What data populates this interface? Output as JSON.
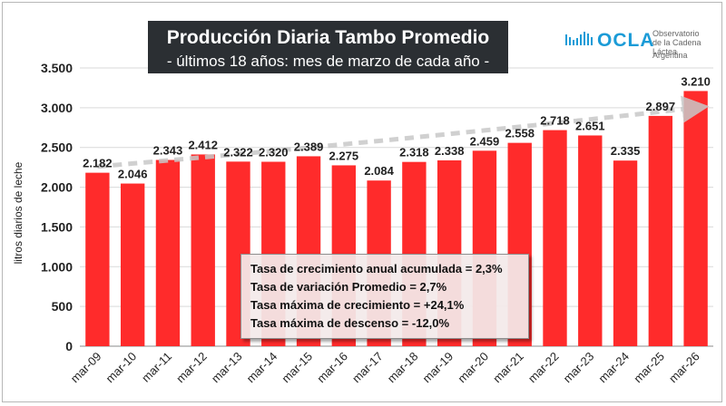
{
  "header": {
    "title": "Producción Diaria Tambo Promedio",
    "subtitle": "- últimos 18 años: mes de marzo de cada año -"
  },
  "logo": {
    "brand": "OCLA",
    "org_line1": "Observatorio",
    "org_line2": "de la Cadena Láctea",
    "country": "Argentina",
    "icon": "wave-bars-icon"
  },
  "stats": {
    "line1": "Tasa de crecimiento anual acumulada = 2,3%",
    "line2": "Tasa de variación  Promedio = 2,7%",
    "line3": "Tasa máxima de crecimiento = +24,1%",
    "line4": "Tasa máxima de descenso = -12,0%"
  },
  "colors": {
    "bar": "#ff2b2b",
    "trend": "#c8c8c8",
    "title_bg": "#2b2f33",
    "brand": "#1b9bd7"
  },
  "chart_data": {
    "type": "bar",
    "title": "Producción Diaria Tambo Promedio",
    "subtitle": "- últimos 18 años: mes de marzo de cada año -",
    "xlabel": "",
    "ylabel": "litros diarios de leche",
    "ylim": [
      0,
      3500
    ],
    "yticks": [
      0,
      500,
      1000,
      1500,
      2000,
      2500,
      3000,
      3500
    ],
    "ytick_labels": [
      "0",
      "500",
      "1.000",
      "1.500",
      "2.000",
      "2.500",
      "3.000",
      "3.500"
    ],
    "grid": true,
    "categories": [
      "mar-09",
      "mar-10",
      "mar-11",
      "mar-12",
      "mar-13",
      "mar-14",
      "mar-15",
      "mar-16",
      "mar-17",
      "mar-18",
      "mar-19",
      "mar-20",
      "mar-21",
      "mar-22",
      "mar-23",
      "mar-24",
      "mar-25",
      "mar-26"
    ],
    "values": [
      2182,
      2046,
      2343,
      2412,
      2322,
      2320,
      2389,
      2275,
      2084,
      2318,
      2338,
      2459,
      2558,
      2718,
      2651,
      2335,
      2897,
      3210
    ],
    "value_labels": [
      "2.182",
      "2.046",
      "2.343",
      "2.412",
      "2.322",
      "2.320",
      "2.389",
      "2.275",
      "2.084",
      "2.318",
      "2.338",
      "2.459",
      "2.558",
      "2.718",
      "2.651",
      "2.335",
      "2.897",
      "3.210"
    ],
    "trend": {
      "type": "exponential",
      "start": 2260,
      "end": 3000
    }
  }
}
